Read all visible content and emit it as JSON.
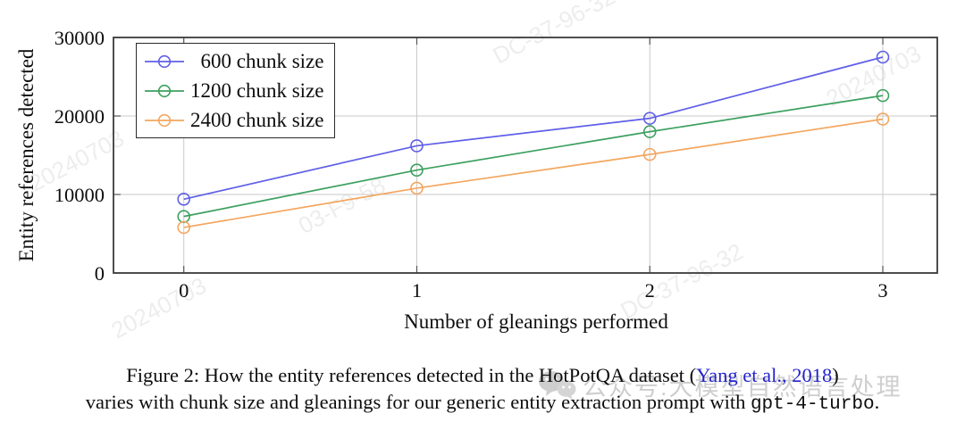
{
  "watermarks": {
    "account_label": "公众号:大模型自然语言处理",
    "stamps": [
      "20240703",
      "DC-37-96-32",
      "03-F9-58"
    ]
  },
  "chart_data": {
    "type": "line",
    "x": [
      0,
      1,
      2,
      3
    ],
    "xticks": [
      0,
      1,
      2,
      3
    ],
    "yticks": [
      0,
      10000,
      20000,
      30000
    ],
    "ylim": [
      0,
      30000
    ],
    "xlabel": "Number of gleanings performed",
    "ylabel": "Entity references detected",
    "grid": true,
    "legend_position": "top-left",
    "marker": "open-circle",
    "series": [
      {
        "name": "600 chunk size",
        "color": "#5f5fe8",
        "values": [
          9400,
          16200,
          19700,
          27500
        ]
      },
      {
        "name": "1200 chunk size",
        "color": "#3ca05f",
        "values": [
          7200,
          13100,
          18000,
          22600
        ]
      },
      {
        "name": "2400 chunk size",
        "color": "#f3a65f",
        "values": [
          5800,
          10800,
          15100,
          19600
        ]
      }
    ]
  },
  "caption": {
    "line1_before_cite": "Figure 2: How the entity references detected in the HotPotQA dataset (",
    "citation": "Yang et al., 2018",
    "line1_after_cite": ")",
    "line2_text": "varies with chunk size and gleanings for our generic entity extraction prompt with ",
    "line2_code": "gpt-4-turbo",
    "line2_end": "."
  },
  "colors": {
    "citation_blue": "#2222cc",
    "gridline": "#c9c9c9",
    "axis_border": "#3b3b3b",
    "tick": "#555555",
    "watermark_gray": "#c6c6c6"
  }
}
